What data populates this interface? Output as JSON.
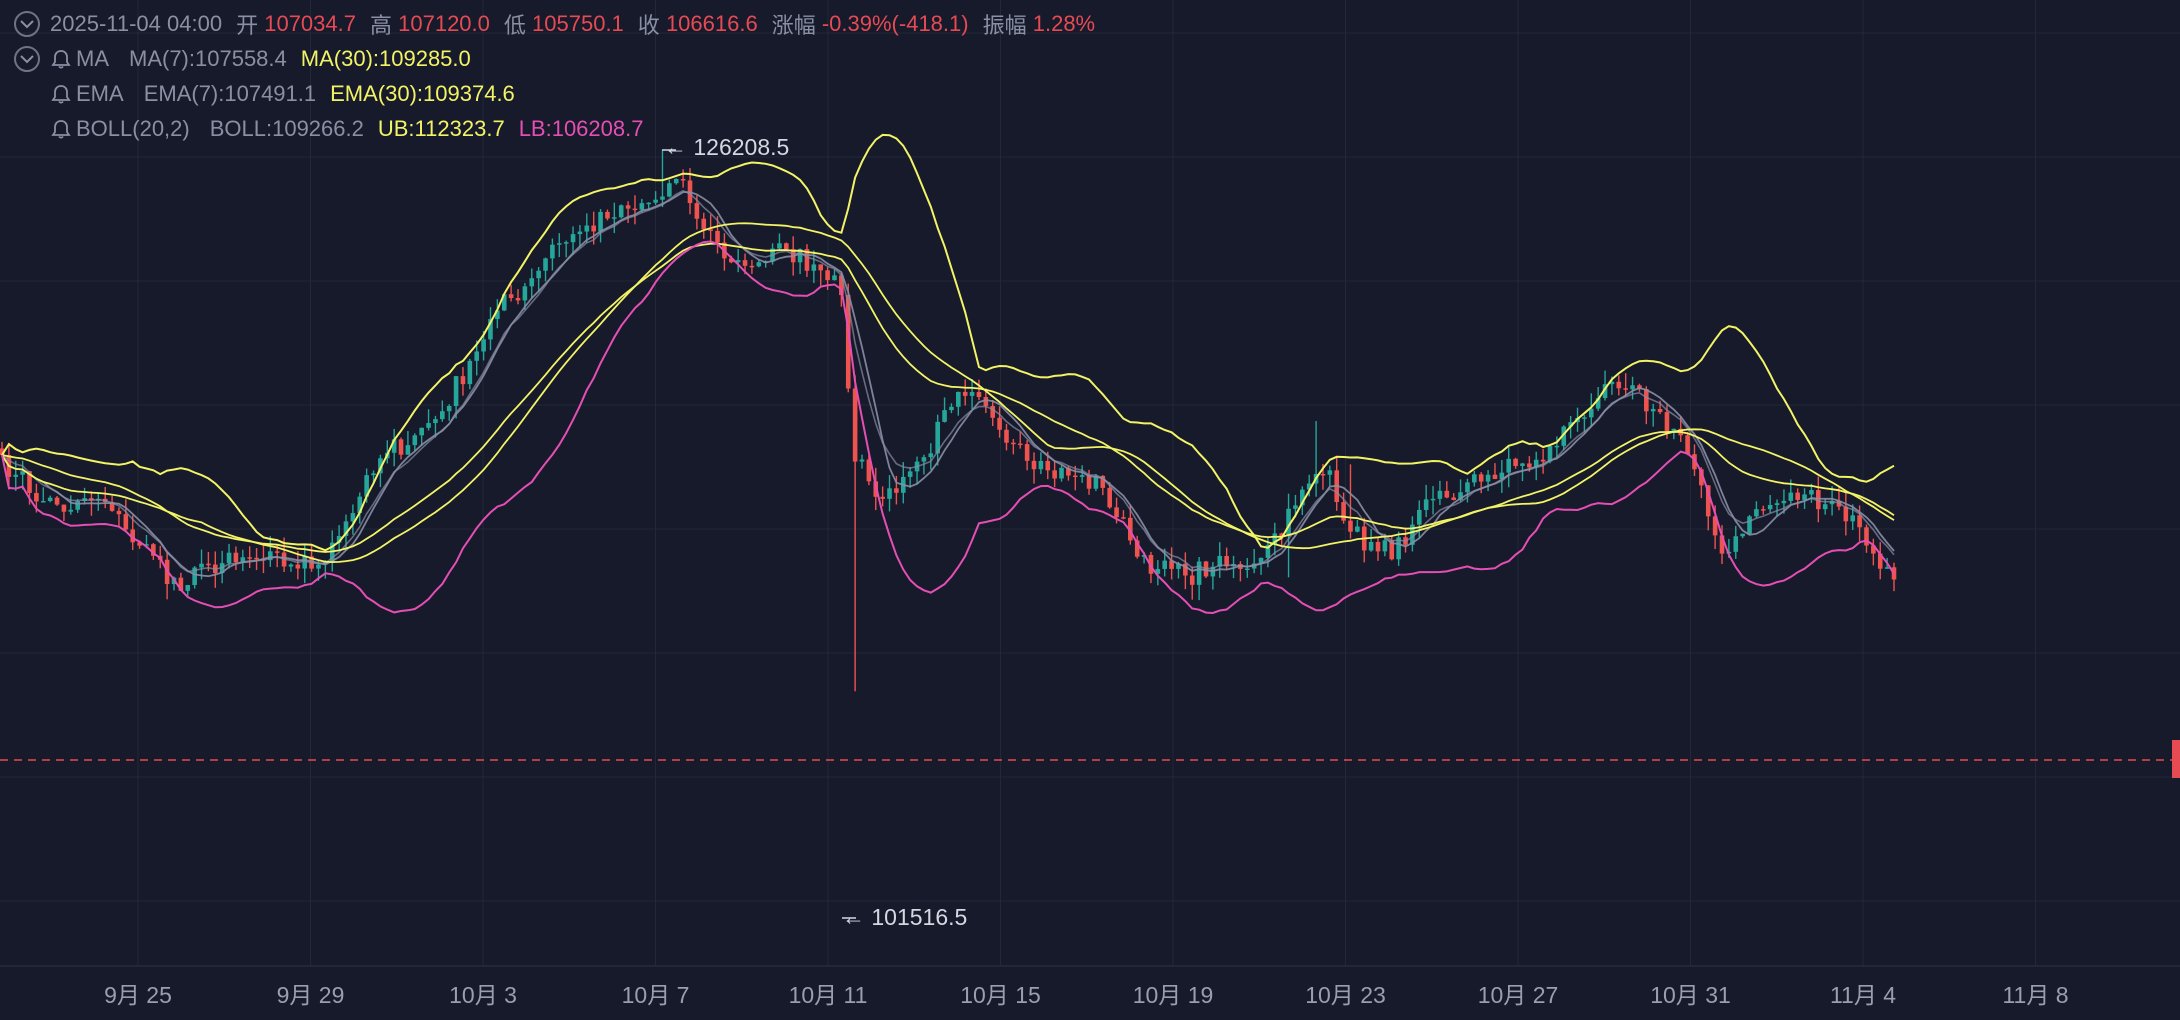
{
  "legend": {
    "ohlc": {
      "datetime": "2025-11-04 04:00",
      "open_label": "开",
      "open": "107034.7",
      "high_label": "高",
      "high": "107120.0",
      "low_label": "低",
      "low": "105750.1",
      "close_label": "收",
      "close": "106616.6",
      "change_label": "涨幅",
      "change": "-0.39%(-418.1)",
      "amplitude_label": "振幅",
      "amplitude": "1.28%"
    },
    "ma": {
      "name": "MA",
      "ma7": "MA(7):107558.4",
      "ma30": "MA(30):109285.0"
    },
    "ema": {
      "name": "EMA",
      "ema7": "EMA(7):107491.1",
      "ema30": "EMA(30):109374.6"
    },
    "boll": {
      "name": "BOLL(20,2)",
      "mid": "BOLL:109266.2",
      "ub": "UB:112323.7",
      "lb": "LB:106208.7"
    }
  },
  "annotations": {
    "high_marker": "126208.5",
    "low_marker": "101516.5"
  },
  "colors": {
    "background": "#161a2b",
    "up": "#26a69a",
    "down": "#ef5350",
    "yellow": "#f3f366",
    "pink": "#e54fb4",
    "grey": "#8a8fa6",
    "last_price_line": "#e64a53"
  },
  "icons": {
    "toggle": "chevron-down-circle-icon",
    "alert": "bell-icon"
  },
  "chart_data": {
    "type": "candlestick",
    "interval": "4h",
    "x_ticks": [
      "9月 25",
      "9月 29",
      "10月 3",
      "10月 7",
      "10月 11",
      "10月 15",
      "10月 19",
      "10月 23",
      "10月 27",
      "10月 31",
      "11月 4",
      "11月 8"
    ],
    "last_close": 106616.6,
    "high_point": 126208.5,
    "low_point": 101516.5,
    "anchors": [
      [
        0,
        112300
      ],
      [
        2,
        111400
      ],
      [
        6,
        110200
      ],
      [
        10,
        109800
      ],
      [
        14,
        110300
      ],
      [
        18,
        108900
      ],
      [
        22,
        107700
      ],
      [
        26,
        106100
      ],
      [
        30,
        107300
      ],
      [
        34,
        107400
      ],
      [
        38,
        107500
      ],
      [
        42,
        107300
      ],
      [
        46,
        107300
      ],
      [
        48,
        108300
      ],
      [
        52,
        110400
      ],
      [
        56,
        112400
      ],
      [
        60,
        113200
      ],
      [
        64,
        114300
      ],
      [
        68,
        116600
      ],
      [
        72,
        118900
      ],
      [
        76,
        120000
      ],
      [
        80,
        121900
      ],
      [
        84,
        122500
      ],
      [
        88,
        123100
      ],
      [
        92,
        123500
      ],
      [
        96,
        124100
      ],
      [
        98,
        124900
      ],
      [
        100,
        123800
      ],
      [
        102,
        122600
      ],
      [
        104,
        122000
      ],
      [
        106,
        121100
      ],
      [
        110,
        121100
      ],
      [
        114,
        121700
      ],
      [
        118,
        121000
      ],
      [
        121,
        120500
      ],
      [
        122,
        119600
      ],
      [
        124,
        112000
      ],
      [
        126,
        111100
      ],
      [
        128,
        110300
      ],
      [
        131,
        111300
      ],
      [
        134,
        112200
      ],
      [
        138,
        114500
      ],
      [
        140,
        115000
      ],
      [
        144,
        114000
      ],
      [
        148,
        112800
      ],
      [
        152,
        111600
      ],
      [
        156,
        111300
      ],
      [
        160,
        110800
      ],
      [
        164,
        108400
      ],
      [
        168,
        107100
      ],
      [
        172,
        106800
      ],
      [
        176,
        107200
      ],
      [
        180,
        107100
      ],
      [
        184,
        108200
      ],
      [
        188,
        110000
      ],
      [
        190,
        111000
      ],
      [
        193,
        111600
      ],
      [
        196,
        108800
      ],
      [
        200,
        107900
      ],
      [
        204,
        108200
      ],
      [
        208,
        110300
      ],
      [
        212,
        110600
      ],
      [
        216,
        111400
      ],
      [
        220,
        111800
      ],
      [
        224,
        112000
      ],
      [
        228,
        113800
      ],
      [
        232,
        114900
      ],
      [
        236,
        115300
      ],
      [
        240,
        114400
      ],
      [
        244,
        113200
      ],
      [
        248,
        109500
      ],
      [
        250,
        107800
      ],
      [
        254,
        109500
      ],
      [
        258,
        110100
      ],
      [
        262,
        110500
      ],
      [
        266,
        110200
      ],
      [
        270,
        109000
      ],
      [
        272,
        107800
      ],
      [
        275,
        106600
      ]
    ],
    "ma": [
      {
        "name": "MA(7)",
        "value": 107558.4
      },
      {
        "name": "MA(30)",
        "value": 109285.0
      }
    ],
    "ema": [
      {
        "name": "EMA(7)",
        "value": 107491.1
      },
      {
        "name": "EMA(30)",
        "value": 109374.6
      }
    ],
    "boll": {
      "period": 20,
      "mult": 2,
      "mid": 109266.2,
      "ub": 112323.7,
      "lb": 106208.7
    }
  }
}
